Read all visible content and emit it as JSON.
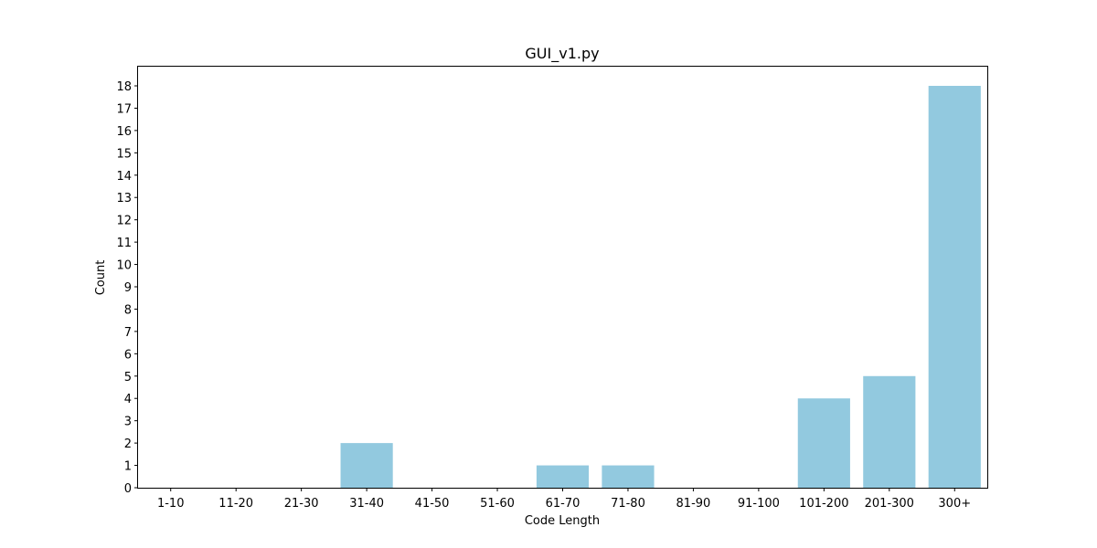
{
  "chart_data": {
    "type": "bar",
    "title": "GUI_v1.py",
    "xlabel": "Code Length",
    "ylabel": "Count",
    "categories": [
      "1-10",
      "11-20",
      "21-30",
      "31-40",
      "41-50",
      "51-60",
      "61-70",
      "71-80",
      "81-90",
      "91-100",
      "101-200",
      "201-300",
      "300+"
    ],
    "values": [
      0,
      0,
      0,
      2,
      0,
      0,
      1,
      1,
      0,
      0,
      4,
      5,
      18
    ],
    "ylim": [
      0,
      18.9
    ],
    "yticks": [
      0,
      1,
      2,
      3,
      4,
      5,
      6,
      7,
      8,
      9,
      10,
      11,
      12,
      13,
      14,
      15,
      16,
      17,
      18
    ],
    "bar_color": "#92c9df",
    "grid": false,
    "legend": "none"
  }
}
